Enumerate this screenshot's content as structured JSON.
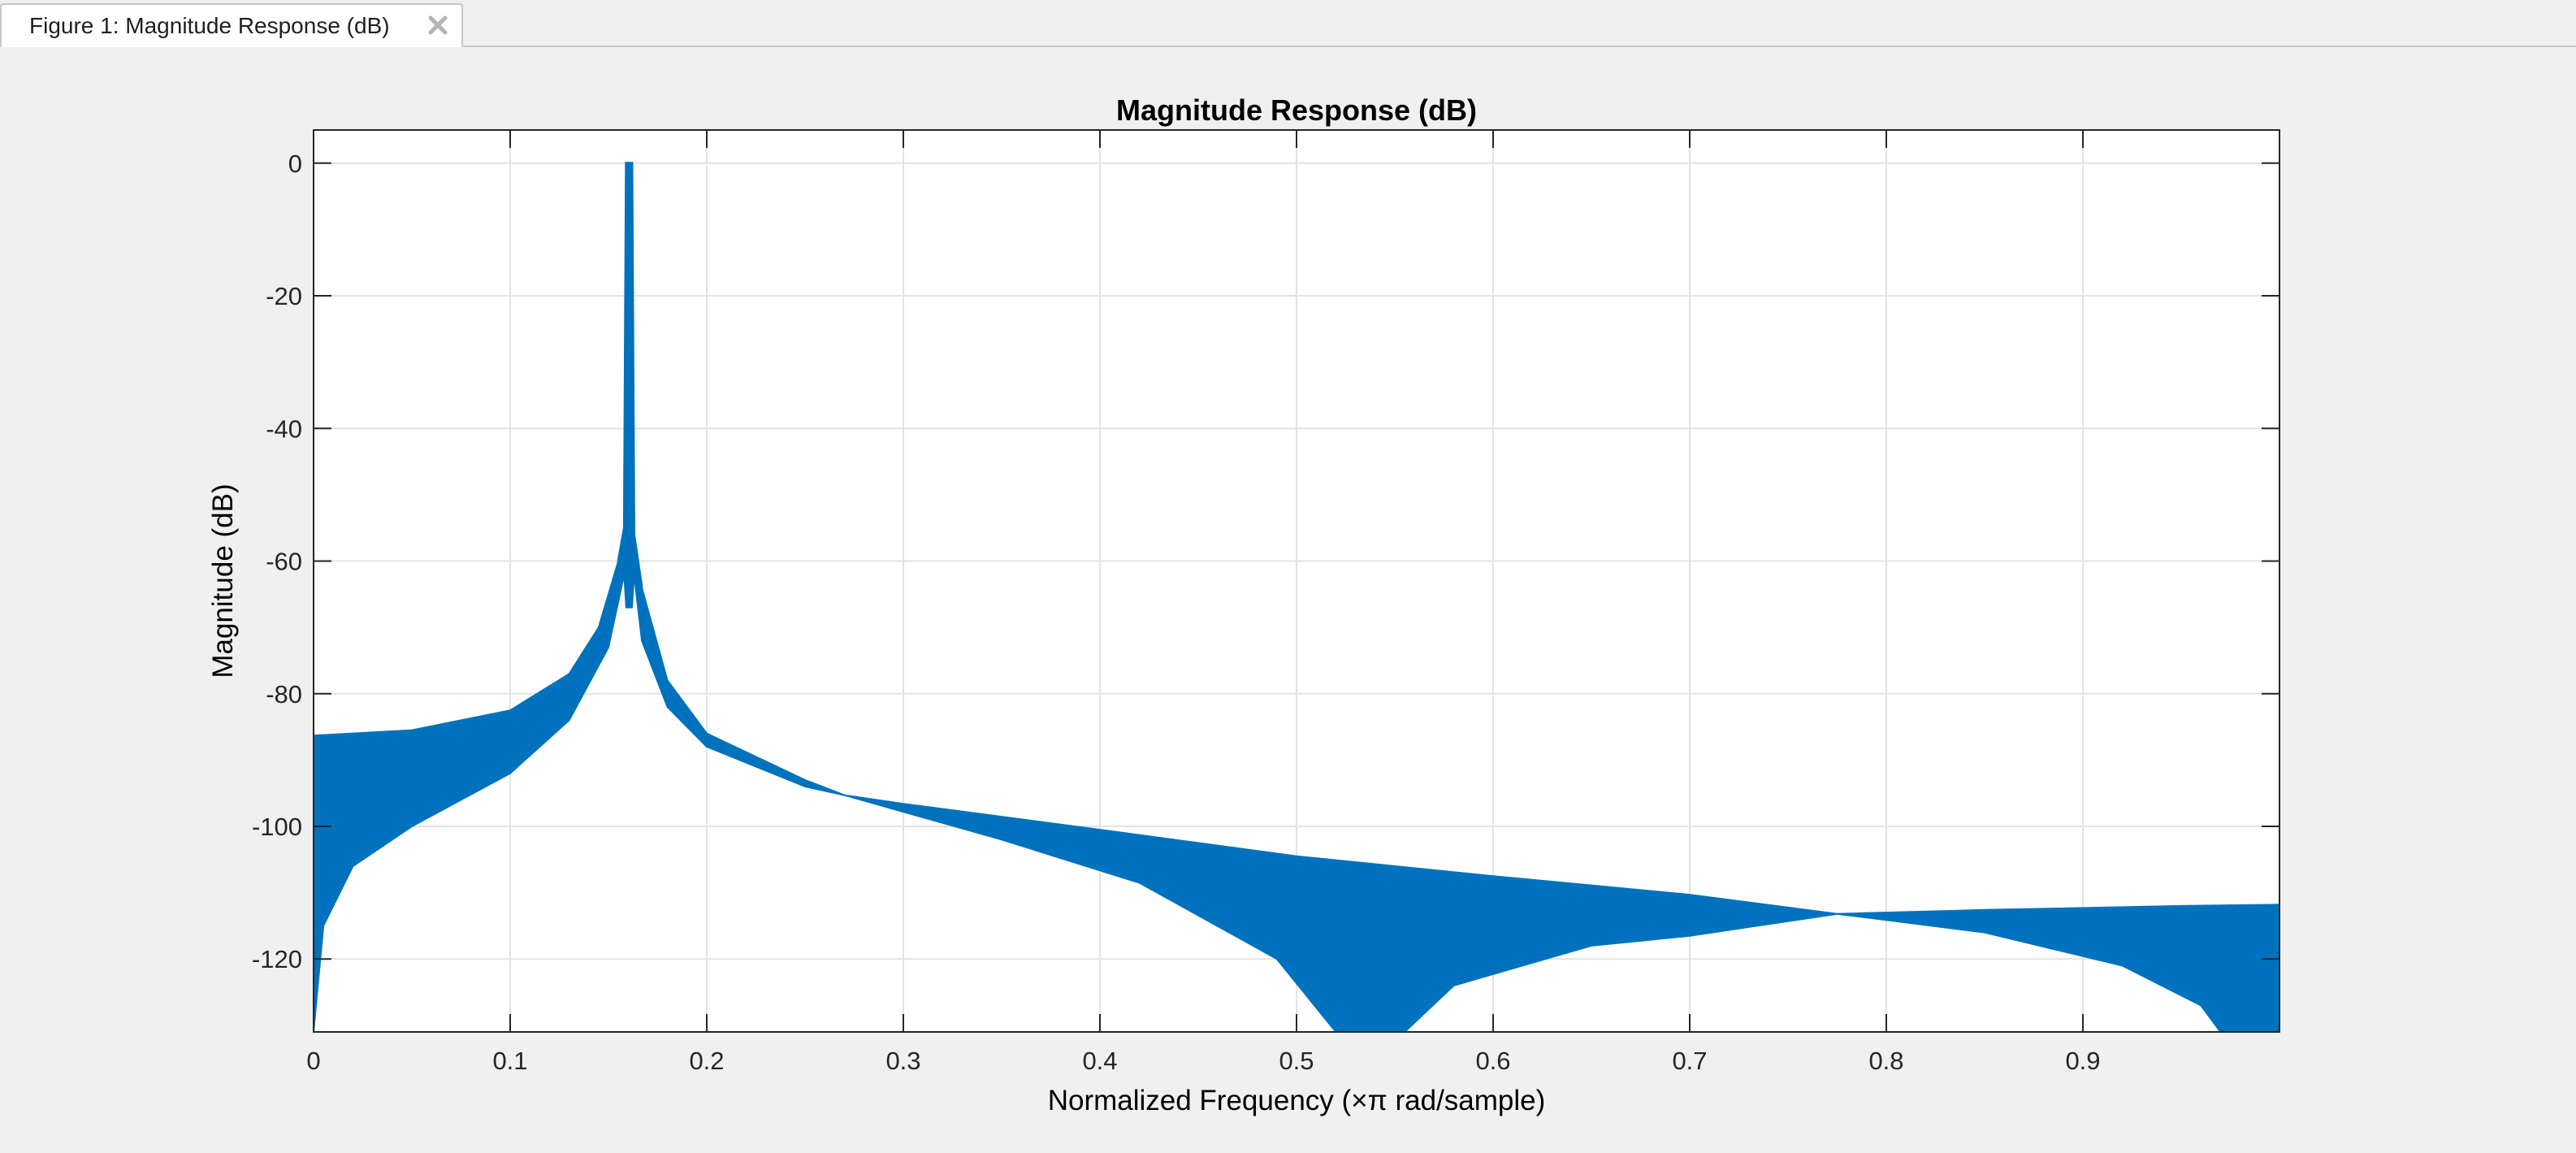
{
  "window": {
    "tab_title": "Figure 1: Magnitude Response (dB)",
    "close_icon": "close-x-icon"
  },
  "colors": {
    "series": "#0072bd",
    "grid": "#e3e3e3",
    "axes": "#262626",
    "background": "#ffffff",
    "figure_background": "#f0f0f0"
  },
  "chart_data": {
    "type": "line",
    "title": "Magnitude Response (dB)",
    "xlabel": "Normalized Frequency (×π rad/sample)",
    "ylabel": "Magnitude (dB)",
    "xlim": [
      0,
      1
    ],
    "ylim": [
      -131,
      5
    ],
    "x_ticks": [
      0,
      0.1,
      0.2,
      0.3,
      0.4,
      0.5,
      0.6,
      0.7,
      0.8,
      0.9
    ],
    "x_tick_labels": [
      "0",
      "0.1",
      "0.2",
      "0.3",
      "0.4",
      "0.5",
      "0.6",
      "0.7",
      "0.8",
      "0.9"
    ],
    "y_ticks": [
      0,
      -20,
      -40,
      -60,
      -80,
      -100,
      -120
    ],
    "y_tick_labels": [
      "0",
      "-20",
      "-40",
      "-60",
      "-80",
      "-100",
      "-120"
    ],
    "grid": true,
    "series": [
      {
        "envelope_upper": [
          [
            0,
            -86.3
          ],
          [
            0.05,
            -85.5
          ],
          [
            0.1,
            -82.5
          ],
          [
            0.13,
            -77
          ],
          [
            0.145,
            -70
          ],
          [
            0.155,
            -60
          ],
          [
            0.158,
            -55
          ],
          [
            0.159,
            0
          ],
          [
            0.162,
            0
          ],
          [
            0.163,
            -56
          ],
          [
            0.167,
            -64
          ],
          [
            0.18,
            -78
          ],
          [
            0.2,
            -86
          ],
          [
            0.25,
            -93
          ],
          [
            0.27,
            -95.3
          ],
          [
            0.3,
            -96.6
          ],
          [
            0.4,
            -100.5
          ],
          [
            0.5,
            -104.5
          ],
          [
            0.6,
            -107.5
          ],
          [
            0.7,
            -110.3
          ],
          [
            0.775,
            -113.2
          ],
          [
            0.85,
            -112.6
          ],
          [
            0.95,
            -112
          ],
          [
            1.0,
            -111.8
          ]
        ],
        "envelope_lower": [
          [
            0,
            -131
          ],
          [
            0.005,
            -115
          ],
          [
            0.02,
            -106
          ],
          [
            0.05,
            -100
          ],
          [
            0.1,
            -92
          ],
          [
            0.13,
            -84
          ],
          [
            0.15,
            -73
          ],
          [
            0.158,
            -62
          ],
          [
            0.159,
            -67
          ],
          [
            0.162,
            -67
          ],
          [
            0.163,
            -62
          ],
          [
            0.167,
            -72
          ],
          [
            0.18,
            -82
          ],
          [
            0.2,
            -88
          ],
          [
            0.25,
            -94
          ],
          [
            0.27,
            -95.3
          ],
          [
            0.35,
            -102
          ],
          [
            0.42,
            -108.5
          ],
          [
            0.49,
            -120
          ],
          [
            0.52,
            -131
          ],
          [
            0.555,
            -131
          ],
          [
            0.58,
            -124
          ],
          [
            0.65,
            -118
          ],
          [
            0.7,
            -116.5
          ],
          [
            0.775,
            -113.2
          ],
          [
            0.85,
            -116
          ],
          [
            0.92,
            -121
          ],
          [
            0.96,
            -127
          ],
          [
            0.97,
            -131
          ],
          [
            1.0,
            -131
          ]
        ]
      }
    ]
  }
}
